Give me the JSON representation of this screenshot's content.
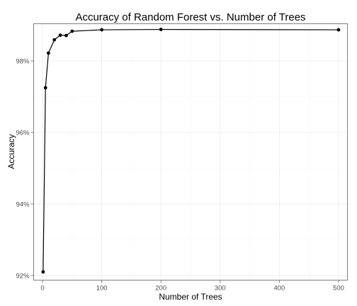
{
  "chart_data": {
    "type": "line",
    "title": "Accuracy of Random Forest vs. Number of Trees",
    "xlabel": "Number of Trees",
    "ylabel": "Accuracy",
    "xlim": [
      -15,
      515
    ],
    "ylim": [
      0.9187,
      0.9904
    ],
    "x_ticks": [
      0,
      100,
      200,
      300,
      400,
      500
    ],
    "x_tick_labels": [
      "0",
      "100",
      "200",
      "300",
      "400",
      "500"
    ],
    "y_ticks": [
      0.92,
      0.94,
      0.96,
      0.98
    ],
    "y_tick_labels": [
      "92%",
      "94%",
      "96%",
      "98%"
    ],
    "grid": true,
    "legend": "none",
    "series": [
      {
        "x": [
          1,
          5,
          10,
          20,
          30,
          40,
          50,
          100,
          200,
          500
        ],
        "y": [
          0.921,
          0.9725,
          0.9822,
          0.9859,
          0.9872,
          0.9871,
          0.9883,
          0.9887,
          0.9888,
          0.9887
        ]
      }
    ]
  }
}
